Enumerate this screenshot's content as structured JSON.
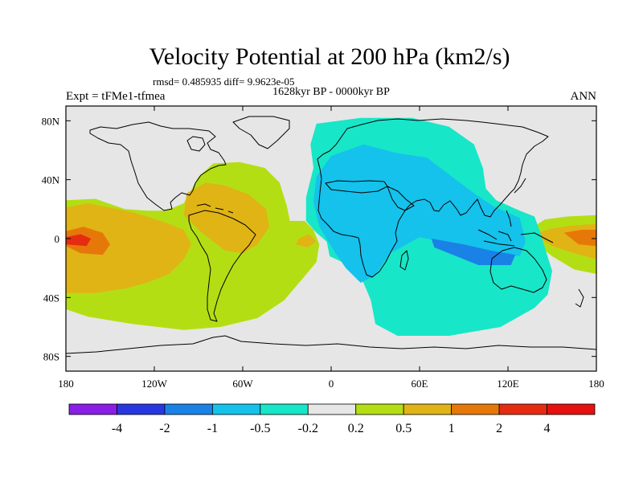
{
  "chart_data": {
    "type": "heatmap",
    "title": "Velocity Potential at 200 hPa (km2/s)",
    "stats": "rmsd= 0.485935  diff= 9.9623e-05",
    "left_label": "Expt = tFMe1-tfmea",
    "center_label": "1628kyr BP - 0000kyr BP",
    "right_label": "ANN",
    "x_axis": {
      "range": [
        -180,
        180
      ],
      "ticks": [
        {
          "value": -180,
          "label": "180"
        },
        {
          "value": -120,
          "label": "120W"
        },
        {
          "value": -60,
          "label": "60W"
        },
        {
          "value": 0,
          "label": "0"
        },
        {
          "value": 60,
          "label": "60E"
        },
        {
          "value": 120,
          "label": "120E"
        },
        {
          "value": 180,
          "label": "180"
        }
      ]
    },
    "y_axis": {
      "range": [
        -90,
        90
      ],
      "ticks": [
        {
          "value": 80,
          "label": "80N"
        },
        {
          "value": 40,
          "label": "40N"
        },
        {
          "value": 0,
          "label": "0"
        },
        {
          "value": -40,
          "label": "40S"
        },
        {
          "value": -80,
          "label": "80S"
        }
      ]
    },
    "colorbar": {
      "levels": [
        "-4",
        "-2",
        "-1",
        "-0.5",
        "-0.2",
        "0.2",
        "0.5",
        "1",
        "2",
        "4"
      ],
      "colors": [
        "#8a1ee6",
        "#2838e0",
        "#1a82e6",
        "#14c2ec",
        "#18e6c8",
        "#e6e6e6",
        "#b4de14",
        "#e0b414",
        "#e6780a",
        "#e62c10",
        "#e61010"
      ]
    },
    "fields": {
      "background_color": "#e6e6e6",
      "regions": [
        {
          "name": "east-pacific-positive",
          "level": 1,
          "polygon": [
            [
              -180,
              21
            ],
            [
              -165,
              24
            ],
            [
              -150,
              21
            ],
            [
              -135,
              18
            ],
            [
              -122,
              14
            ],
            [
              -110,
              10
            ],
            [
              -100,
              6
            ],
            [
              -95,
              -4
            ],
            [
              -100,
              -14
            ],
            [
              -110,
              -24
            ],
            [
              -125,
              -30
            ],
            [
              -140,
              -34
            ],
            [
              -160,
              -37
            ],
            [
              -180,
              -37
            ]
          ]
        },
        {
          "name": "east-pacific-core",
          "level": 2,
          "polygon": [
            [
              -180,
              5
            ],
            [
              -168,
              8
            ],
            [
              -155,
              4
            ],
            [
              -150,
              -4
            ],
            [
              -155,
              -11
            ],
            [
              -170,
              -10
            ],
            [
              -180,
              -5
            ]
          ]
        },
        {
          "name": "east-pacific-core-inner",
          "level": 3,
          "polygon": [
            [
              -180,
              1
            ],
            [
              -170,
              3
            ],
            [
              -163,
              0
            ],
            [
              -166,
              -5
            ],
            [
              -180,
              -4
            ]
          ]
        },
        {
          "name": "americas-positive",
          "level": 1,
          "polygon": [
            [
              -98,
              31
            ],
            [
              -85,
              38
            ],
            [
              -72,
              36
            ],
            [
              -56,
              30
            ],
            [
              -44,
              20
            ],
            [
              -42,
              8
            ],
            [
              -50,
              -4
            ],
            [
              -60,
              -10
            ],
            [
              -72,
              -8
            ],
            [
              -80,
              -2
            ],
            [
              -90,
              6
            ],
            [
              -100,
              16
            ]
          ]
        },
        {
          "name": "south-atlantic-spot",
          "level": 1,
          "polygon": [
            [
              -22,
              0
            ],
            [
              -15,
              3
            ],
            [
              -10,
              -2
            ],
            [
              -16,
              -6
            ],
            [
              -24,
              -4
            ]
          ]
        },
        {
          "name": "west-pacific-positive",
          "level": 1,
          "polygon": [
            [
              137,
              3
            ],
            [
              150,
              7
            ],
            [
              165,
              9
            ],
            [
              180,
              10
            ],
            [
              180,
              -14
            ],
            [
              165,
              -10
            ],
            [
              150,
              -5
            ]
          ]
        },
        {
          "name": "west-pacific-core",
          "level": 2,
          "polygon": [
            [
              158,
              4
            ],
            [
              170,
              6
            ],
            [
              180,
              6
            ],
            [
              180,
              -5
            ],
            [
              168,
              -4
            ]
          ]
        }
      ],
      "positive_envelope": [
        [
          -180,
          26
        ],
        [
          -160,
          27
        ],
        [
          -140,
          20
        ],
        [
          -125,
          19
        ],
        [
          -112,
          19
        ],
        [
          -100,
          24
        ],
        [
          -90,
          42
        ],
        [
          -80,
          51
        ],
        [
          -62,
          52
        ],
        [
          -45,
          48
        ],
        [
          -35,
          38
        ],
        [
          -30,
          22
        ],
        [
          -28,
          12
        ],
        [
          -18,
          12
        ],
        [
          -12,
          6
        ],
        [
          -8,
          -4
        ],
        [
          -10,
          -16
        ],
        [
          -20,
          -28
        ],
        [
          -32,
          -42
        ],
        [
          -50,
          -54
        ],
        [
          -75,
          -60
        ],
        [
          -100,
          -62
        ],
        [
          -135,
          -58
        ],
        [
          -165,
          -53
        ],
        [
          -180,
          -48
        ]
      ],
      "positive_envelope_east": [
        [
          134,
          6
        ],
        [
          145,
          13
        ],
        [
          160,
          15
        ],
        [
          180,
          16
        ],
        [
          180,
          -24
        ],
        [
          165,
          -21
        ],
        [
          150,
          -12
        ],
        [
          140,
          -4
        ]
      ],
      "negative_envelope": [
        [
          -10,
          78
        ],
        [
          20,
          82
        ],
        [
          55,
          82
        ],
        [
          80,
          76
        ],
        [
          97,
          64
        ],
        [
          103,
          48
        ],
        [
          105,
          34
        ],
        [
          112,
          26
        ],
        [
          128,
          19
        ],
        [
          138,
          15
        ],
        [
          142,
          4
        ],
        [
          145,
          -6
        ],
        [
          150,
          -22
        ],
        [
          147,
          -38
        ],
        [
          138,
          -47
        ],
        [
          115,
          -60
        ],
        [
          80,
          -66
        ],
        [
          45,
          -66
        ],
        [
          30,
          -58
        ],
        [
          27,
          -42
        ],
        [
          22,
          -30
        ],
        [
          12,
          -18
        ],
        [
          -1,
          -12
        ],
        [
          -3,
          -2
        ],
        [
          -10,
          4
        ],
        [
          -17,
          12
        ],
        [
          -17,
          28
        ],
        [
          -12,
          48
        ],
        [
          -14,
          64
        ]
      ],
      "negative_inner": [
        [
          0,
          56
        ],
        [
          22,
          64
        ],
        [
          45,
          58
        ],
        [
          65,
          55
        ],
        [
          82,
          42
        ],
        [
          98,
          30
        ],
        [
          110,
          22
        ],
        [
          128,
          14
        ],
        [
          132,
          -2
        ],
        [
          128,
          -12
        ],
        [
          110,
          -10
        ],
        [
          95,
          -10
        ],
        [
          80,
          -3
        ],
        [
          60,
          1
        ],
        [
          40,
          -10
        ],
        [
          30,
          -25
        ],
        [
          20,
          -30
        ],
        [
          10,
          -20
        ],
        [
          3,
          -10
        ],
        [
          -8,
          8
        ],
        [
          -12,
          25
        ],
        [
          -10,
          42
        ]
      ],
      "negative_core": [
        [
          68,
          0
        ],
        [
          90,
          -4
        ],
        [
          108,
          -8
        ],
        [
          125,
          -11
        ],
        [
          122,
          -18
        ],
        [
          100,
          -18
        ],
        [
          85,
          -12
        ],
        [
          70,
          -6
        ]
      ]
    }
  }
}
